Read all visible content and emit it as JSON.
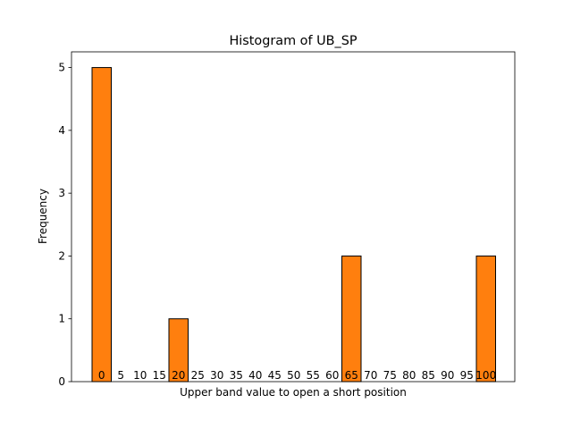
{
  "chart_data": {
    "type": "bar",
    "title": "Histogram of UB_SP",
    "xlabel": "Upper band value to open a short position",
    "ylabel": "Frequency",
    "categories": [
      "0",
      "5",
      "10",
      "15",
      "20",
      "25",
      "30",
      "35",
      "40",
      "45",
      "50",
      "55",
      "60",
      "65",
      "70",
      "75",
      "80",
      "85",
      "90",
      "95",
      "100"
    ],
    "bars": [
      {
        "x": 0,
        "value": 5
      },
      {
        "x": 20,
        "value": 1
      },
      {
        "x": 65,
        "value": 2
      },
      {
        "x": 100,
        "value": 2
      }
    ],
    "yticks": [
      "0",
      "1",
      "2",
      "3",
      "4",
      "5"
    ],
    "ylim": [
      0,
      5.25
    ],
    "grid": false,
    "legend": "none",
    "bar_color": "#ff7f0e",
    "edge_color": "#000000"
  }
}
